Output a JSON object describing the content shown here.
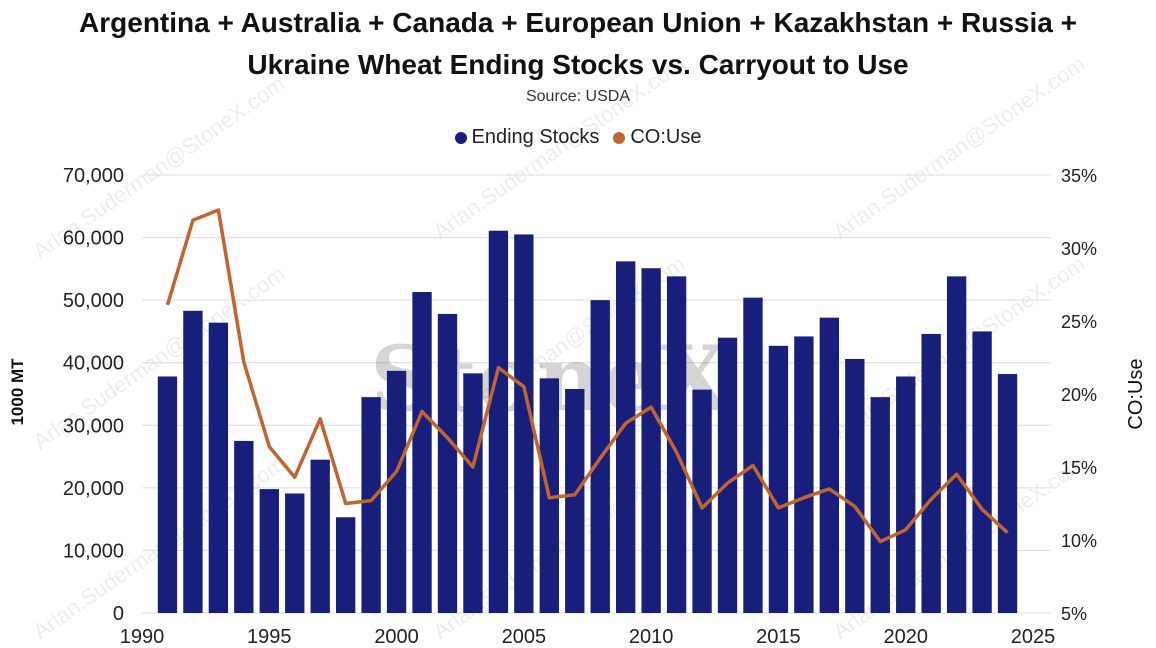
{
  "title_line1": "Argentina + Australia + Canada + European Union + Kazakhstan + Russia +",
  "title_line2": "Ukraine Wheat Ending Stocks vs. Carryout to Use",
  "subtitle": "Source: USDA",
  "watermark": "Arlan.Suderman@StoneX.com",
  "logo_text": "StoneX",
  "colors": {
    "bars": "#171f7a",
    "line": "#c0652f",
    "grid": "#dcdcdc"
  },
  "chart_data": {
    "type": "bar+line",
    "x": [
      1991,
      1992,
      1993,
      1994,
      1995,
      1996,
      1997,
      1998,
      1999,
      2000,
      2001,
      2002,
      2003,
      2004,
      2005,
      2006,
      2007,
      2008,
      2009,
      2010,
      2011,
      2012,
      2013,
      2014,
      2015,
      2016,
      2017,
      2018,
      2019,
      2020,
      2021,
      2022,
      2023,
      2024
    ],
    "series": [
      {
        "name": "Ending Stocks",
        "type": "bar",
        "axis": "left",
        "values": [
          37800,
          48300,
          46400,
          27500,
          19800,
          19100,
          24500,
          15300,
          34500,
          38700,
          51300,
          47800,
          38300,
          61100,
          60500,
          37500,
          35800,
          50000,
          56200,
          55100,
          53800,
          35700,
          44000,
          50400,
          42700,
          44200,
          47200,
          40600,
          34500,
          37800,
          44600,
          53800,
          45000,
          38200
        ]
      },
      {
        "name": "CO:Use",
        "type": "line",
        "axis": "right",
        "values": [
          26.1,
          31.9,
          32.6,
          22.2,
          16.4,
          14.3,
          18.3,
          12.5,
          12.7,
          14.7,
          18.8,
          17.0,
          15.0,
          21.8,
          20.5,
          12.9,
          13.1,
          15.6,
          18.0,
          19.1,
          16.0,
          12.2,
          13.9,
          15.1,
          12.2,
          12.9,
          13.5,
          12.3,
          9.9,
          10.7,
          12.8,
          14.5,
          12.1,
          10.5
        ]
      }
    ],
    "xlim": [
      1990,
      2025
    ],
    "x_ticks": [
      "1990",
      "1995",
      "2000",
      "2005",
      "2010",
      "2015",
      "2020",
      "2025"
    ],
    "ylim": [
      0,
      70000
    ],
    "y_ticks": [
      "0",
      "10,000",
      "20,000",
      "30,000",
      "40,000",
      "50,000",
      "60,000",
      "70,000"
    ],
    "y2lim": [
      5,
      35
    ],
    "y2_ticks": [
      "5%",
      "10%",
      "15%",
      "20%",
      "25%",
      "30%",
      "35%"
    ],
    "ylabel": "1000 MT",
    "y2label": "CO:Use",
    "grid": true,
    "legend_position": "top-center"
  }
}
